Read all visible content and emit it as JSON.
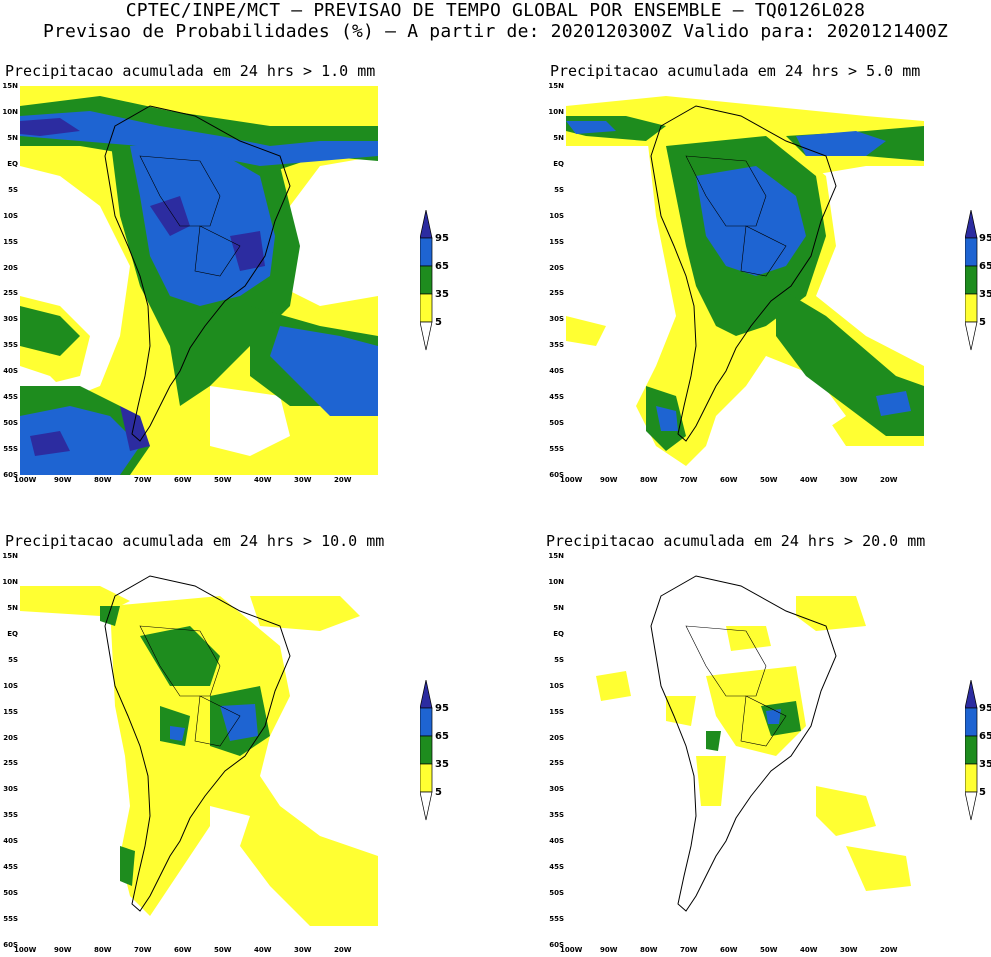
{
  "header": {
    "line1": "CPTEC/INPE/MCT – PREVISAO DE TEMPO GLOBAL POR ENSEMBLE – TQ0126L028",
    "line2": "Previsao de Probabilidades (%) –  A partir de: 2020120300Z  Valido para: 2020121400Z"
  },
  "panels": [
    {
      "title": "Precipitacao acumulada em 24 hrs > 1.0 mm"
    },
    {
      "title": "Precipitacao acumulada em 24 hrs > 5.0 mm"
    },
    {
      "title": "Precipitacao acumulada em 24 hrs > 10.0 mm"
    },
    {
      "title": "Precipitacao acumulada em 24 hrs > 20.0 mm"
    }
  ],
  "axes": {
    "lat_labels": [
      "15N",
      "10N",
      "5N",
      "EQ",
      "5S",
      "10S",
      "15S",
      "20S",
      "25S",
      "30S",
      "35S",
      "40S",
      "45S",
      "50S",
      "55S",
      "60S"
    ],
    "lon_labels": [
      "100W",
      "90W",
      "80W",
      "70W",
      "60W",
      "50W",
      "40W",
      "30W",
      "20W"
    ]
  },
  "legend": {
    "labels": [
      "95",
      "65",
      "35",
      "5"
    ],
    "colors": {
      "c95": "#2c2ca0",
      "c65": "#1e64d2",
      "c35": "#1e8c1e",
      "c5": "#ffff32"
    }
  },
  "colors": {
    "blue_dark": "#2c2ca0",
    "blue": "#1e64d2",
    "green": "#1e8c1e",
    "yellow": "#ffff32"
  }
}
